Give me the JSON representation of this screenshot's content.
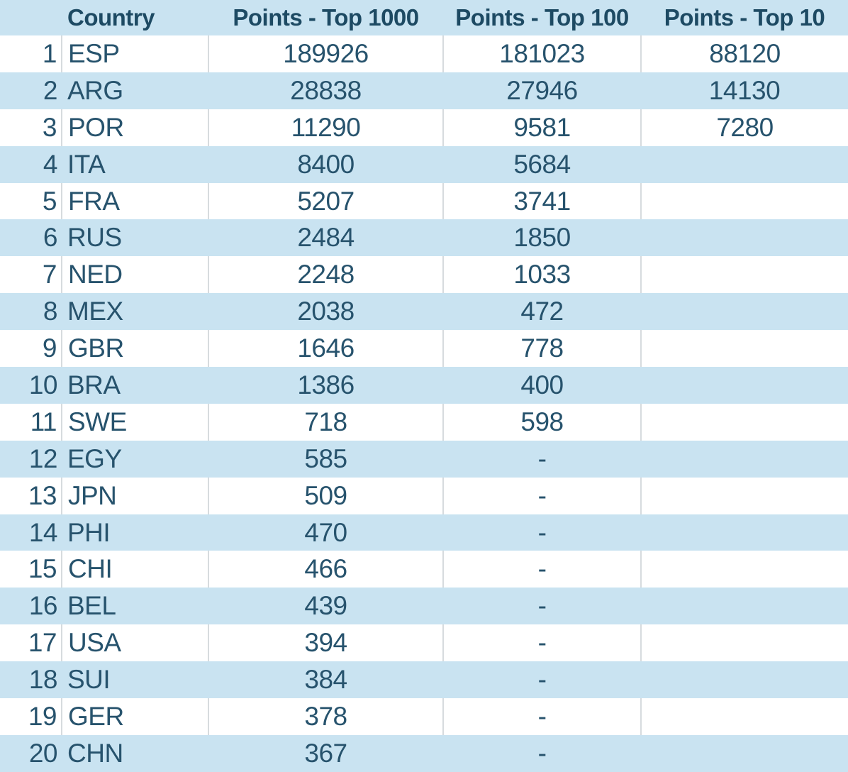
{
  "colors": {
    "stripe_blue": "#c9e3f1",
    "header_text": "#1d4a63",
    "body_text": "#27536d",
    "divider": "#d7dbde",
    "row_white": "#ffffff"
  },
  "table": {
    "headers": [
      "",
      "Country",
      "Points - Top 1000",
      "Points - Top 100",
      "Points - Top 10"
    ],
    "rows": [
      {
        "rank": "1",
        "country": "ESP",
        "top1000": "189926",
        "top100": "181023",
        "top10": "88120"
      },
      {
        "rank": "2",
        "country": "ARG",
        "top1000": "28838",
        "top100": "27946",
        "top10": "14130"
      },
      {
        "rank": "3",
        "country": "POR",
        "top1000": "11290",
        "top100": "9581",
        "top10": "7280"
      },
      {
        "rank": "4",
        "country": "ITA",
        "top1000": "8400",
        "top100": "5684",
        "top10": ""
      },
      {
        "rank": "5",
        "country": "FRA",
        "top1000": "5207",
        "top100": "3741",
        "top10": ""
      },
      {
        "rank": "6",
        "country": "RUS",
        "top1000": "2484",
        "top100": "1850",
        "top10": ""
      },
      {
        "rank": "7",
        "country": "NED",
        "top1000": "2248",
        "top100": "1033",
        "top10": ""
      },
      {
        "rank": "8",
        "country": "MEX",
        "top1000": "2038",
        "top100": "472",
        "top10": ""
      },
      {
        "rank": "9",
        "country": "GBR",
        "top1000": "1646",
        "top100": "778",
        "top10": ""
      },
      {
        "rank": "10",
        "country": "BRA",
        "top1000": "1386",
        "top100": "400",
        "top10": ""
      },
      {
        "rank": "11",
        "country": "SWE",
        "top1000": "718",
        "top100": "598",
        "top10": ""
      },
      {
        "rank": "12",
        "country": "EGY",
        "top1000": "585",
        "top100": "-",
        "top10": ""
      },
      {
        "rank": "13",
        "country": "JPN",
        "top1000": "509",
        "top100": "-",
        "top10": ""
      },
      {
        "rank": "14",
        "country": "PHI",
        "top1000": "470",
        "top100": "-",
        "top10": ""
      },
      {
        "rank": "15",
        "country": "CHI",
        "top1000": "466",
        "top100": "-",
        "top10": ""
      },
      {
        "rank": "16",
        "country": "BEL",
        "top1000": "439",
        "top100": "-",
        "top10": ""
      },
      {
        "rank": "17",
        "country": "USA",
        "top1000": "394",
        "top100": "-",
        "top10": ""
      },
      {
        "rank": "18",
        "country": "SUI",
        "top1000": "384",
        "top100": "-",
        "top10": ""
      },
      {
        "rank": "19",
        "country": "GER",
        "top1000": "378",
        "top100": "-",
        "top10": ""
      },
      {
        "rank": "20",
        "country": "CHN",
        "top1000": "367",
        "top100": "-",
        "top10": ""
      }
    ]
  },
  "chart_data": {
    "type": "table",
    "title": "",
    "columns": [
      "",
      "Country",
      "Points - Top 1000",
      "Points - Top 100",
      "Points - Top 10"
    ],
    "rows": [
      [
        1,
        "ESP",
        189926,
        181023,
        88120
      ],
      [
        2,
        "ARG",
        28838,
        27946,
        14130
      ],
      [
        3,
        "POR",
        11290,
        9581,
        7280
      ],
      [
        4,
        "ITA",
        8400,
        5684,
        null
      ],
      [
        5,
        "FRA",
        5207,
        3741,
        null
      ],
      [
        6,
        "RUS",
        2484,
        1850,
        null
      ],
      [
        7,
        "NED",
        2248,
        1033,
        null
      ],
      [
        8,
        "MEX",
        2038,
        472,
        null
      ],
      [
        9,
        "GBR",
        1646,
        778,
        null
      ],
      [
        10,
        "BRA",
        1386,
        400,
        null
      ],
      [
        11,
        "SWE",
        718,
        598,
        null
      ],
      [
        12,
        "EGY",
        585,
        "-",
        null
      ],
      [
        13,
        "JPN",
        509,
        "-",
        null
      ],
      [
        14,
        "PHI",
        470,
        "-",
        null
      ],
      [
        15,
        "CHI",
        466,
        "-",
        null
      ],
      [
        16,
        "BEL",
        439,
        "-",
        null
      ],
      [
        17,
        "USA",
        394,
        "-",
        null
      ],
      [
        18,
        "SUI",
        384,
        "-",
        null
      ],
      [
        19,
        "GER",
        378,
        "-",
        null
      ],
      [
        20,
        "CHN",
        367,
        "-",
        null
      ]
    ],
    "layout": {
      "striped": true,
      "stripe_color": "#c9e3f1",
      "first_data_row_background": "#ffffff",
      "header_background": "#c9e3f1",
      "numeric_alignment": "center",
      "missing_value_marker_top100": "-",
      "missing_value_marker_top10": ""
    }
  }
}
